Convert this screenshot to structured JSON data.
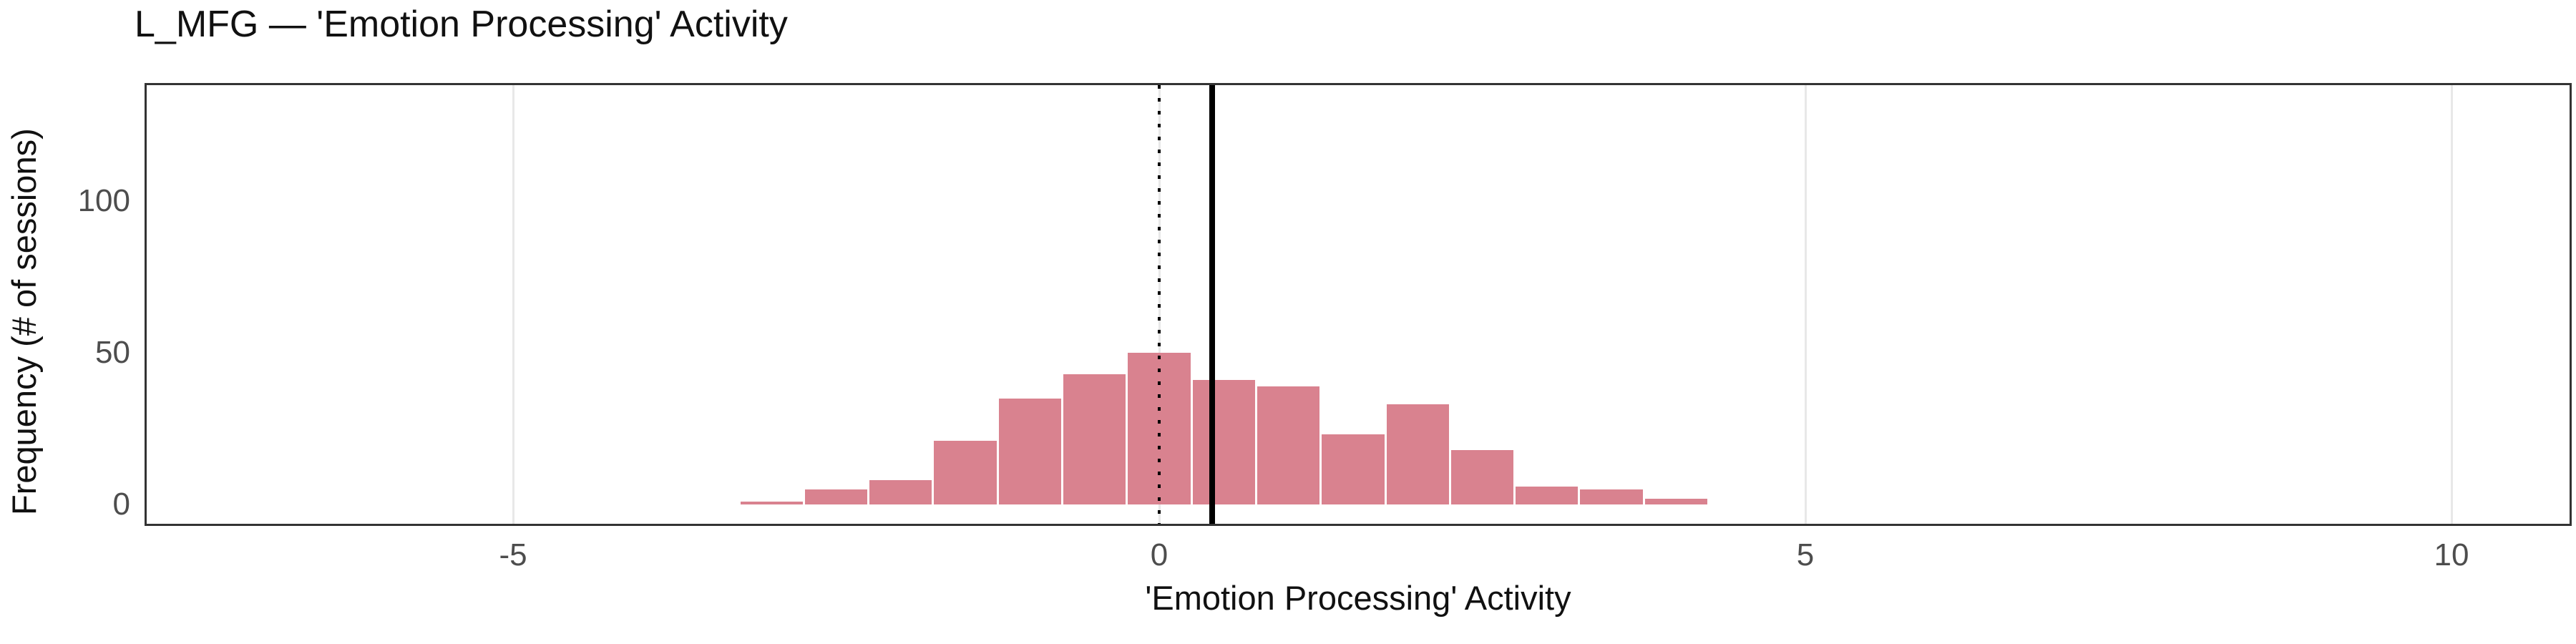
{
  "figure": {
    "title": "L_MFG — 'Emotion Processing' Activity",
    "x_axis_label": "'Emotion Processing' Activity",
    "y_axis_label": "Frequency (# of sessions)"
  },
  "chart_data": {
    "type": "bar",
    "subtype": "histogram",
    "title": "L_MFG — 'Emotion Processing' Activity",
    "xlabel": "'Emotion Processing' Activity",
    "ylabel": "Frequency (# of sessions)",
    "bin_width": 0.5,
    "bin_centers": [
      -3,
      -2.5,
      -2,
      -1.5,
      -1,
      -0.5,
      0,
      0.5,
      1,
      1.5,
      2,
      2.5,
      3,
      3.5,
      4
    ],
    "counts": [
      1,
      5,
      8,
      21,
      35,
      43,
      50,
      41,
      39,
      23,
      33,
      18,
      6,
      5,
      2
    ],
    "x_ticks": [
      -5,
      0,
      5,
      10
    ],
    "y_ticks": [
      0,
      50,
      100
    ],
    "xlim": [
      -7.85,
      10.9
    ],
    "ylim": [
      -7,
      139
    ],
    "grid": "vertical major gridlines only, very light",
    "legend": "none",
    "reference_lines": {
      "dotted_vline_x": 0,
      "solid_vline_x": 0.41
    },
    "colors": {
      "bar_fill": "#d9828f",
      "bar_gap": "#ffffff",
      "reference_line": "#000000",
      "gridline": "#e8e8e8",
      "tick_label": "#4d4d4d",
      "text": "#111111",
      "panel_border": "#333333",
      "background": "#ffffff"
    }
  }
}
